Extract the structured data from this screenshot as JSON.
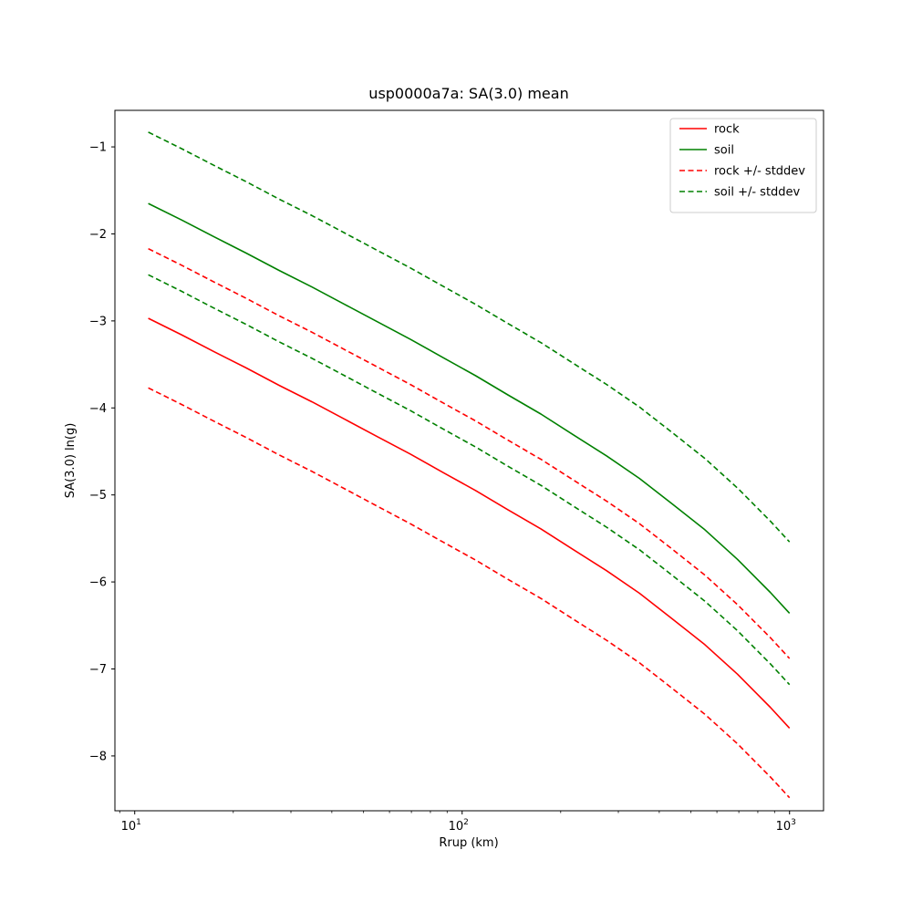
{
  "chart_data": {
    "type": "line",
    "title": "usp0000a7a: SA(3.0) mean",
    "xlabel": "Rrup (km)",
    "ylabel": "SA(3.0) ln(g)",
    "xscale": "log",
    "yscale": "linear",
    "xlim": [
      8.7,
      1270
    ],
    "ylim": [
      -8.63,
      -0.58
    ],
    "xticks": [
      10,
      100,
      1000
    ],
    "yticks": [
      -8,
      -7,
      -6,
      -5,
      -4,
      -3,
      -2,
      -1
    ],
    "grid": false,
    "legend_position": "upper right",
    "x": [
      11.0,
      13.9,
      17.4,
      21.9,
      27.6,
      34.8,
      43.8,
      55.1,
      69.4,
      87.3,
      110.0,
      138.0,
      174.0,
      219.0,
      276.0,
      348.0,
      437.0,
      551.0,
      693.0,
      873.0,
      1000.0
    ],
    "series": [
      {
        "name": "rock",
        "color": "#ff0000",
        "dash": false,
        "values": [
          -2.97,
          -3.16,
          -3.35,
          -3.54,
          -3.74,
          -3.93,
          -4.13,
          -4.33,
          -4.53,
          -4.74,
          -4.95,
          -5.17,
          -5.39,
          -5.63,
          -5.87,
          -6.13,
          -6.42,
          -6.72,
          -7.06,
          -7.44,
          -7.68
        ]
      },
      {
        "name": "soil",
        "color": "#008000",
        "dash": false,
        "values": [
          -1.65,
          -1.84,
          -2.03,
          -2.22,
          -2.42,
          -2.61,
          -2.81,
          -3.01,
          -3.21,
          -3.42,
          -3.63,
          -3.85,
          -4.07,
          -4.31,
          -4.55,
          -4.81,
          -5.1,
          -5.4,
          -5.74,
          -6.12,
          -6.36
        ]
      },
      {
        "name": "rock +/- stddev",
        "color": "#ff0000",
        "dash": true,
        "values_plus": [
          -2.17,
          -2.36,
          -2.55,
          -2.74,
          -2.94,
          -3.13,
          -3.33,
          -3.53,
          -3.73,
          -3.94,
          -4.15,
          -4.37,
          -4.59,
          -4.83,
          -5.07,
          -5.33,
          -5.62,
          -5.92,
          -6.26,
          -6.64,
          -6.88
        ],
        "values_minus": [
          -3.77,
          -3.96,
          -4.15,
          -4.34,
          -4.54,
          -4.73,
          -4.93,
          -5.13,
          -5.33,
          -5.54,
          -5.75,
          -5.97,
          -6.19,
          -6.43,
          -6.67,
          -6.93,
          -7.22,
          -7.52,
          -7.86,
          -8.24,
          -8.48
        ]
      },
      {
        "name": "soil +/- stddev",
        "color": "#008000",
        "dash": true,
        "values_plus": [
          -0.83,
          -1.02,
          -1.21,
          -1.4,
          -1.6,
          -1.79,
          -1.99,
          -2.19,
          -2.39,
          -2.6,
          -2.81,
          -3.03,
          -3.25,
          -3.49,
          -3.73,
          -3.99,
          -4.28,
          -4.58,
          -4.92,
          -5.3,
          -5.54
        ],
        "values_minus": [
          -2.47,
          -2.66,
          -2.85,
          -3.04,
          -3.24,
          -3.43,
          -3.63,
          -3.83,
          -4.03,
          -4.24,
          -4.45,
          -4.67,
          -4.89,
          -5.13,
          -5.37,
          -5.63,
          -5.92,
          -6.22,
          -6.56,
          -6.94,
          -7.18
        ]
      }
    ]
  }
}
